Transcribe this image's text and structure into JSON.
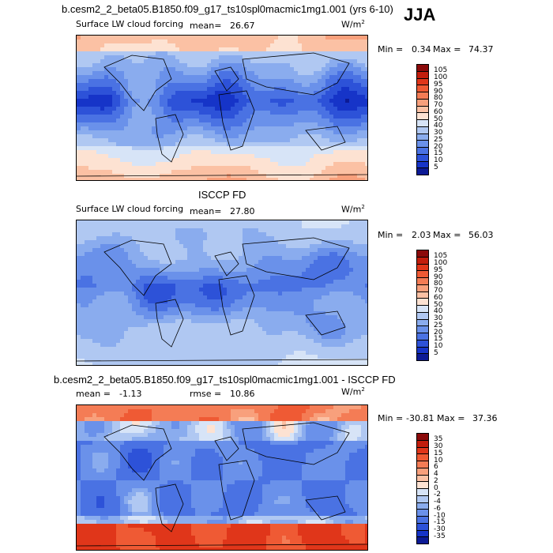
{
  "season": "JJA",
  "panels": [
    {
      "title": "b.cesm2_2_beta05.B1850.f09_g17_ts10spl0macmic1mg1.001 (yrs 6-10)",
      "field": "Surface LW cloud forcing",
      "mean_label": "mean=",
      "mean_value": "26.67",
      "units_base": "W/m",
      "units_exp": "2",
      "min_label": "Min =",
      "min_value": "0.34",
      "max_label": "Max =",
      "max_value": "74.37"
    },
    {
      "title": "ISCCP FD",
      "field": "Surface LW cloud forcing",
      "mean_label": "mean=",
      "mean_value": "27.80",
      "units_base": "W/m",
      "units_exp": "2",
      "min_label": "Min =",
      "min_value": "2.03",
      "max_label": "Max =",
      "max_value": "56.03"
    },
    {
      "title": "b.cesm2_2_beta05.B1850.f09_g17_ts10spl0macmic1mg1.001 - ISCCP FD",
      "mean_label": "mean =",
      "mean_value": "-1.13",
      "rmse_label": "rmse =",
      "rmse_value": "10.86",
      "units_base": "W/m",
      "units_exp": "2",
      "min_label": "Min =",
      "min_value": "-30.81",
      "max_label": "Max =",
      "max_value": "37.36"
    }
  ],
  "chart_data": [
    {
      "type": "heatmap",
      "title": "b.cesm2_2_beta05.B1850.f09_g17_ts10spl0macmic1mg1.001 (yrs 6-10)",
      "subtitle": "Surface LW cloud forcing",
      "units": "W/m2",
      "mean": 26.67,
      "min": 0.34,
      "max": 74.37,
      "colorbar_levels": [
        5,
        10,
        15,
        20,
        25,
        30,
        40,
        50,
        60,
        70,
        80,
        90,
        95,
        100,
        105
      ],
      "colorbar_labels": [
        "105",
        "100",
        "95",
        "90",
        "80",
        "70",
        "60",
        "50",
        "40",
        "30",
        "25",
        "20",
        "15",
        "10",
        "5"
      ],
      "colorbar_colors": [
        "#8b0a0a",
        "#c21d0c",
        "#e0361a",
        "#ef5a34",
        "#f47c55",
        "#f8a07c",
        "#fbc1a4",
        "#fde2d2",
        "#d7e4f7",
        "#b0c8f2",
        "#8aacee",
        "#6a91ea",
        "#4a72e3",
        "#2d52d8",
        "#1634c8",
        "#0c1a95"
      ]
    },
    {
      "type": "heatmap",
      "title": "ISCCP FD",
      "subtitle": "Surface LW cloud forcing",
      "units": "W/m2",
      "mean": 27.8,
      "min": 2.03,
      "max": 56.03,
      "colorbar_levels": [
        5,
        10,
        15,
        20,
        25,
        30,
        40,
        50,
        60,
        70,
        80,
        90,
        95,
        100,
        105
      ],
      "colorbar_labels": [
        "105",
        "100",
        "95",
        "90",
        "80",
        "70",
        "60",
        "50",
        "40",
        "30",
        "25",
        "20",
        "15",
        "10",
        "5"
      ],
      "colorbar_colors": [
        "#8b0a0a",
        "#c21d0c",
        "#e0361a",
        "#ef5a34",
        "#f47c55",
        "#f8a07c",
        "#fbc1a4",
        "#fde2d2",
        "#d7e4f7",
        "#b0c8f2",
        "#8aacee",
        "#6a91ea",
        "#4a72e3",
        "#2d52d8",
        "#1634c8",
        "#0c1a95"
      ]
    },
    {
      "type": "heatmap",
      "title": "b.cesm2_2_beta05.B1850.f09_g17_ts10spl0macmic1mg1.001 - ISCCP FD",
      "units": "W/m2",
      "mean": -1.13,
      "rmse": 10.86,
      "min": -30.81,
      "max": 37.36,
      "colorbar_levels": [
        -35,
        -30,
        -15,
        -10,
        -6,
        -4,
        -2,
        0,
        2,
        4,
        6,
        10,
        15,
        30,
        35
      ],
      "colorbar_labels": [
        "35",
        "30",
        "15",
        "10",
        "6",
        "4",
        "2",
        "0",
        "-2",
        "-4",
        "-6",
        "-10",
        "-15",
        "-30",
        "-35"
      ],
      "colorbar_colors": [
        "#8b0a0a",
        "#c21d0c",
        "#e0361a",
        "#ef5a34",
        "#f47c55",
        "#f8a07c",
        "#fbc1a4",
        "#fde2d2",
        "#d7e4f7",
        "#b0c8f2",
        "#8aacee",
        "#6a91ea",
        "#4a72e3",
        "#2d52d8",
        "#1634c8",
        "#0c1a95"
      ]
    }
  ]
}
